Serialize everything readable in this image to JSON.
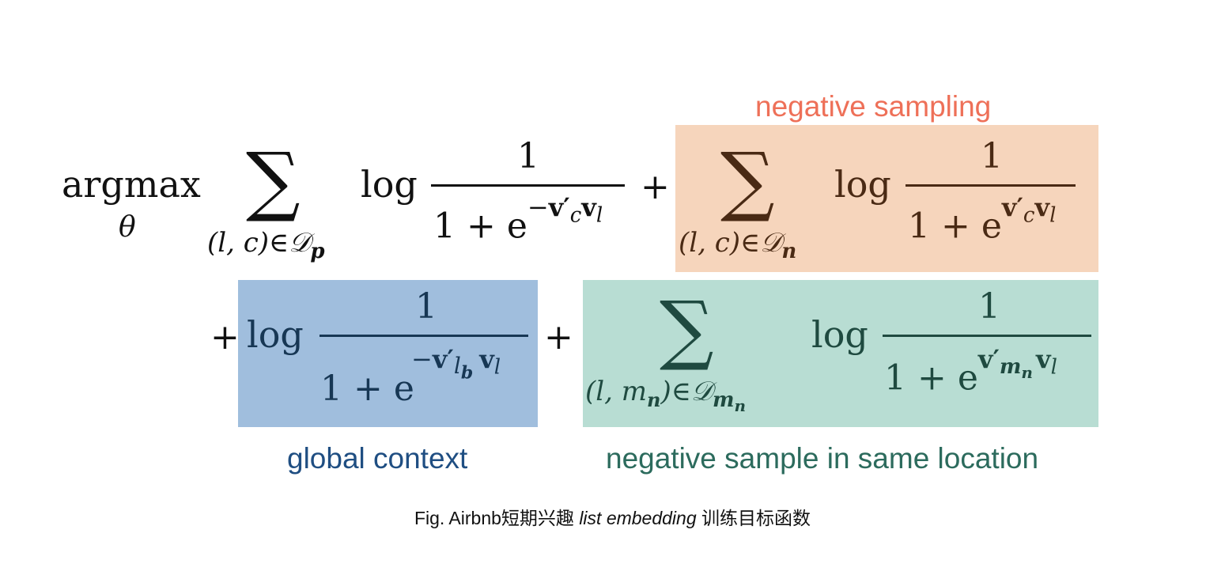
{
  "colors": {
    "negative_sampling_box": "#f6d5bc",
    "negative_sampling_text": "#ee7058",
    "global_context_box": "#a0bedd",
    "global_context_text": "#1f4e82",
    "same_location_box": "#b8ddd3",
    "same_location_text": "#2c6b5d",
    "neg_math": "#4a2a14",
    "global_math": "#173754",
    "loc_math": "#1f4a40"
  },
  "labels": {
    "negative_sampling": "negative sampling",
    "global_context": "global context",
    "same_location": "negative sample in same location"
  },
  "formula": {
    "operator": "argmax",
    "operator_sub": "θ",
    "sum": "∑",
    "log": "log",
    "one": "1",
    "plus": "+",
    "term1": {
      "sub_prefix": "(l, c)∈",
      "sub_set": "𝒟",
      "sub_set_index": "p",
      "exp_sign": "−",
      "exp_v1": "v′",
      "exp_v1_sub": "c",
      "exp_v2": "v",
      "exp_v2_sub": "l"
    },
    "term2": {
      "sub_prefix": "(l, c)∈",
      "sub_set": "𝒟",
      "sub_set_index": "n",
      "exp_v1": "v′",
      "exp_v1_sub": "c",
      "exp_v2": "v",
      "exp_v2_sub": "l"
    },
    "term3": {
      "exp_sign": "−",
      "exp_v1": "v′",
      "exp_v1_sub": "l",
      "exp_v1_sub_sub": "b",
      "exp_v2": "v",
      "exp_v2_sub": "l"
    },
    "term4": {
      "sub_prefix": "(l, m",
      "sub_prefix_index": "n",
      "sub_close": ")∈",
      "sub_set": "𝒟",
      "sub_set_index": "m",
      "sub_set_index_sub": "n",
      "exp_v1": "v′",
      "exp_v1_sub": "m",
      "exp_v1_sub_sub": "n",
      "exp_v2": "v",
      "exp_v2_sub": "l"
    },
    "base": "1 + e"
  },
  "caption": {
    "prefix": "Fig. Airbnb短期兴趣 ",
    "italic": "list embedding",
    "suffix": " 训练目标函数"
  }
}
